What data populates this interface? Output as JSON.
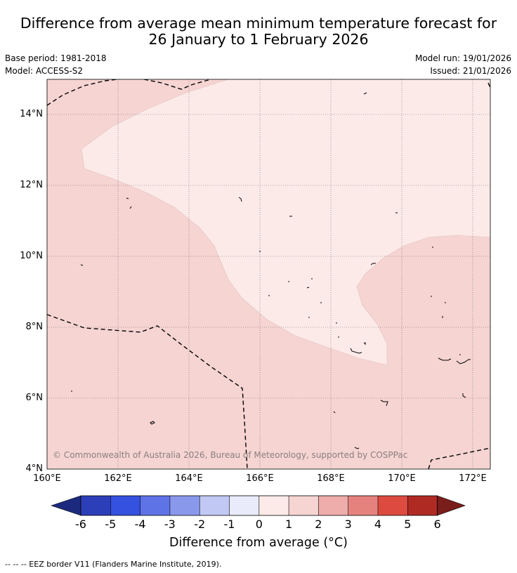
{
  "title_line1": "Difference from average mean minimum temperature forecast for",
  "title_line2": "26 January to 1 February 2026",
  "base_period": "Base period: 1981-2018",
  "model": "Model: ACCESS-S2",
  "model_run": "Model run: 19/01/2026",
  "issued": "Issued: 21/01/2026",
  "copyright": "© Commonwealth of Australia 2026, Bureau of Meteorology, supported by COSPPac",
  "map": {
    "lon_range": [
      160,
      172.5
    ],
    "lat_range": [
      4,
      15
    ],
    "lat_ticks": [
      "14°N",
      "12°N",
      "10°N",
      "8°N",
      "6°N",
      "4°N"
    ],
    "lon_ticks": [
      "160°E",
      "162°E",
      "164°E",
      "166°E",
      "168°E",
      "170°E",
      "172°E"
    ],
    "base_fill_class": "1 to 2",
    "inner_fill_class": "0 to 1"
  },
  "colorbar": {
    "title": "Difference from average (°C)",
    "labels": [
      "-6",
      "-5",
      "-4",
      "-3",
      "-2",
      "-1",
      "0",
      "1",
      "2",
      "3",
      "4",
      "5",
      "6"
    ],
    "colors": [
      "#1c2a7e",
      "#2d3fb8",
      "#3451e0",
      "#5e73e6",
      "#8a98ec",
      "#c2c8f4",
      "#e9ebfa",
      "#fbeae8",
      "#f5d4d2",
      "#eeadaa",
      "#e6827d",
      "#dc4a40",
      "#b02a24",
      "#7a1e1c"
    ]
  },
  "footnote": "--  --  -- EEZ border V11 (Flanders Marine Institute, 2019)."
}
